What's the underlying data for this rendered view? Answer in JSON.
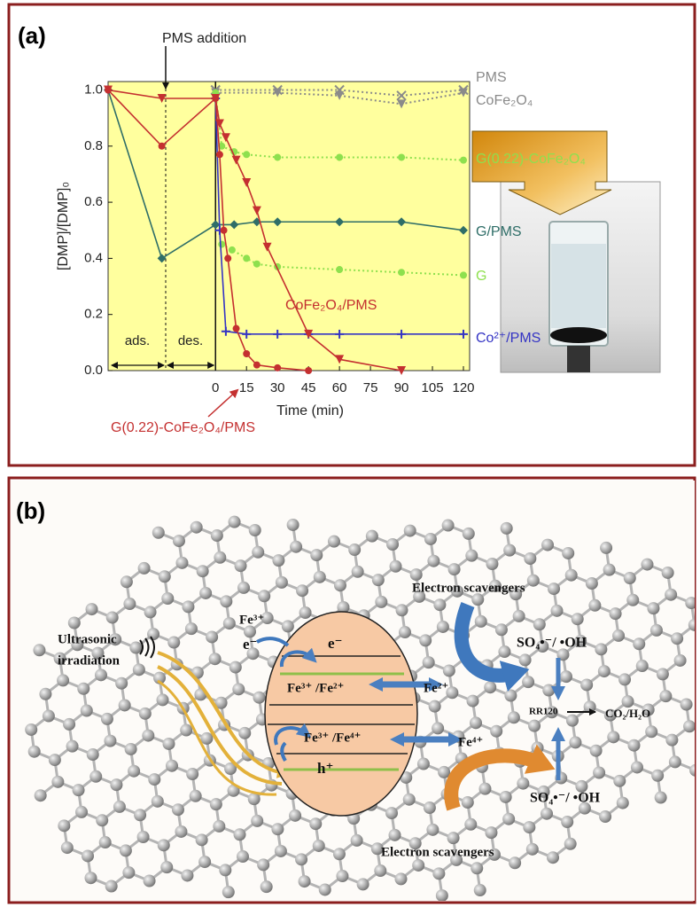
{
  "chart_data": {
    "type": "line",
    "panel_label": "(a)",
    "xlabel": "Time (min)",
    "ylabel": "[DMP]/[DMP]₀",
    "annotations": [
      "PMS addition",
      "ads.",
      "des."
    ],
    "xlim": [
      -52,
      123
    ],
    "ylim": [
      0,
      1.03
    ],
    "xticks": [
      0,
      15,
      30,
      45,
      60,
      75,
      90,
      105,
      120
    ],
    "yticks": [
      {
        "value": 0,
        "label": "0.0"
      },
      0.2,
      0.4,
      0.6,
      0.8,
      {
        "value": 1,
        "label": "1.0"
      }
    ],
    "grid": false,
    "series": [
      {
        "name": "PMS",
        "color": "#8a8a8a",
        "marker": "x",
        "linestyle": "dotted",
        "x": [
          0,
          30,
          60,
          90,
          120
        ],
        "values": [
          1.0,
          1.0,
          1.0,
          0.98,
          1.0
        ]
      },
      {
        "name": "CoFe₂O₄",
        "color": "#8a8a8a",
        "marker": "triangle",
        "linestyle": "dotted",
        "x": [
          0,
          30,
          60,
          90,
          120
        ],
        "values": [
          0.99,
          0.99,
          0.98,
          0.95,
          0.99
        ]
      },
      {
        "name": "G(0.22)-CoFe₂O₄",
        "color": "#8ee04e",
        "marker": "circle",
        "linestyle": "dotted",
        "x": [
          0,
          3,
          9,
          15,
          30,
          60,
          90,
          120
        ],
        "values": [
          0.99,
          0.8,
          0.78,
          0.77,
          0.76,
          0.76,
          0.76,
          0.75
        ]
      },
      {
        "name": "G/PMS",
        "color": "#2f6e68",
        "marker": "diamond",
        "linestyle": "solid",
        "x": [
          -52,
          -26,
          0,
          9,
          20,
          30,
          60,
          90,
          120
        ],
        "values": [
          1.0,
          0.4,
          0.52,
          0.52,
          0.53,
          0.53,
          0.53,
          0.53,
          0.5
        ]
      },
      {
        "name": "G",
        "color": "#8ee04e",
        "marker": "circle",
        "linestyle": "dotted",
        "x": [
          3,
          8,
          15,
          20,
          30,
          60,
          90,
          120
        ],
        "values": [
          0.45,
          0.43,
          0.4,
          0.38,
          0.37,
          0.36,
          0.35,
          0.34
        ]
      },
      {
        "name": "Co²⁺/PMS",
        "color": "#3434c4",
        "marker": "plus",
        "linestyle": "solid",
        "x": [
          0,
          2,
          5,
          15,
          30,
          45,
          60,
          90,
          120
        ],
        "values": [
          0.97,
          0.5,
          0.14,
          0.13,
          0.13,
          0.13,
          0.13,
          0.13,
          0.13
        ]
      },
      {
        "name": "CoFe₂O₄/PMS",
        "color": "#c43030",
        "marker": "triangle",
        "linestyle": "solid",
        "x": [
          -52,
          -26,
          0,
          2,
          5,
          10,
          15,
          20,
          25,
          45,
          60,
          90
        ],
        "values": [
          1.0,
          0.97,
          0.97,
          0.88,
          0.83,
          0.75,
          0.67,
          0.57,
          0.44,
          0.13,
          0.04,
          0.0
        ]
      },
      {
        "name": "G(0.22)-CoFe₂O₄/PMS",
        "color": "#c43030",
        "marker": "circle",
        "linestyle": "solid",
        "x": [
          -52,
          -26,
          0,
          2,
          4,
          6,
          10,
          15,
          20,
          30,
          45
        ],
        "values": [
          1.0,
          0.8,
          0.97,
          0.77,
          0.5,
          0.4,
          0.15,
          0.06,
          0.02,
          0.01,
          0.0
        ]
      }
    ]
  },
  "diagram": {
    "panel_label": "(b)",
    "scavengers_top": "Electron scavengers",
    "scavengers_bottom": "Electron scavengers",
    "ultrasonic": [
      "Ultrasonic",
      "irradiation"
    ],
    "fe3_outside": "Fe³⁺",
    "e_outside": "e⁻",
    "e_band": "e⁻",
    "fe3_fe2": "Fe³⁺ /Fe²⁺",
    "fe2": "Fe²⁺",
    "fe3_fe4": "Fe³⁺ /Fe⁴⁺",
    "fe4": "Fe⁴⁺",
    "hole": "h⁺",
    "radicals_top": "SO₄•⁻/ •OH",
    "radicals_bottom": "SO₄•⁻/ •OH",
    "pollutant": "RR120",
    "products": "CO₂/H₂O"
  }
}
